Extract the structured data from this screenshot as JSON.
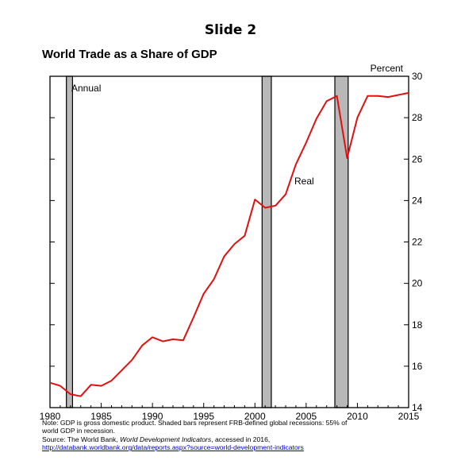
{
  "slide_title": "Slide 2",
  "chart_data": {
    "type": "line",
    "title": "World Trade as a Share of GDP",
    "unit_label": "Percent",
    "annotation": "Annual",
    "xlim": [
      1980,
      2015
    ],
    "ylim": [
      14,
      30
    ],
    "x_ticks": [
      1980,
      1985,
      1990,
      1995,
      2000,
      2005,
      2010,
      2015
    ],
    "y_ticks": [
      14,
      16,
      18,
      20,
      22,
      24,
      26,
      28,
      30
    ],
    "y_axis_side": "right",
    "grid": false,
    "series": [
      {
        "name": "Real",
        "color": "#e01010",
        "x": [
          1980,
          1981,
          1982,
          1983,
          1984,
          1985,
          1986,
          1987,
          1988,
          1989,
          1990,
          1991,
          1992,
          1993,
          1994,
          1995,
          1996,
          1997,
          1998,
          1999,
          2000,
          2001,
          2002,
          2003,
          2004,
          2005,
          2006,
          2007,
          2008,
          2009,
          2010,
          2011,
          2012,
          2013,
          2014,
          2015
        ],
        "y": [
          15.2,
          15.05,
          14.65,
          14.55,
          15.1,
          15.05,
          15.3,
          15.8,
          16.3,
          17.0,
          17.4,
          17.2,
          17.3,
          17.25,
          18.35,
          19.5,
          20.2,
          21.3,
          21.9,
          22.3,
          24.05,
          23.65,
          23.75,
          24.3,
          25.75,
          26.8,
          27.95,
          28.8,
          29.05,
          26.05,
          28.0,
          29.05,
          29.05,
          29.0,
          29.1,
          29.2
        ]
      }
    ],
    "recessions": [
      [
        1981.6,
        1982.2
      ],
      [
        2000.7,
        2001.6
      ],
      [
        2007.8,
        2009.1
      ]
    ],
    "recession_color": "#b8b8b8"
  },
  "notes": {
    "line1": "Note: GDP is gross domestic product. Shaded bars represent FRB-defined global recessions: 55% of",
    "line2": "world GDP in recession.",
    "line3_prefix": "Source: The World Bank, ",
    "line3_italic": "World Development Indicators",
    "line3_suffix": ", accessed in 2016,",
    "link": "http://databank.worldbank.org/data/reports.aspx?source=world-development-indicators"
  }
}
